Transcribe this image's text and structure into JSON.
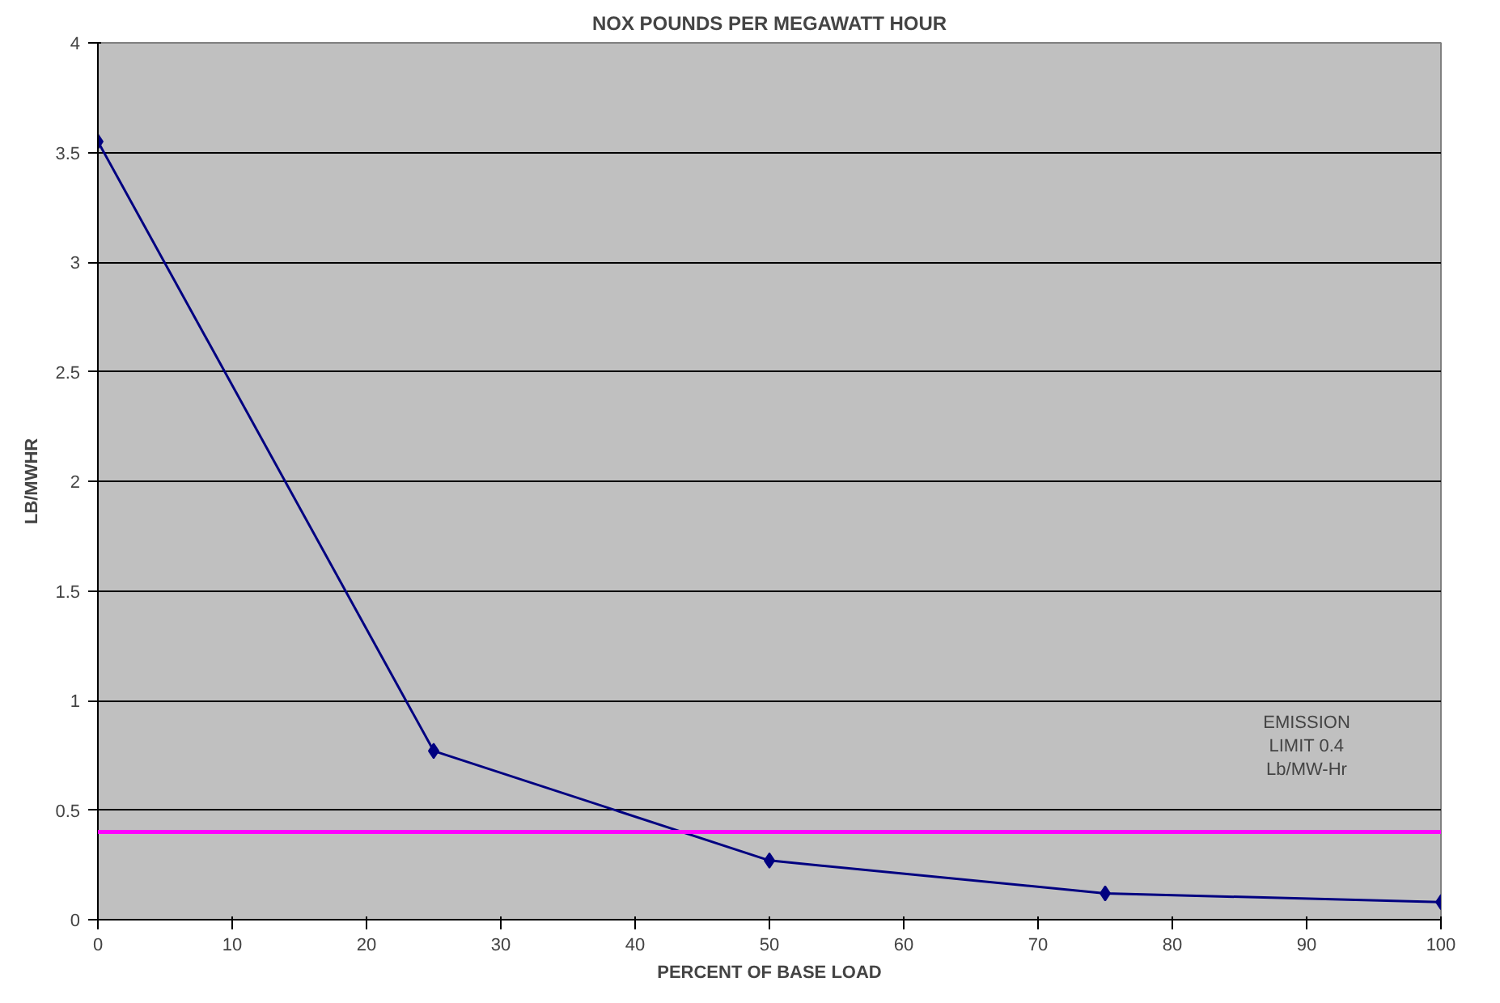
{
  "chart_data": {
    "type": "line",
    "title": "NOX POUNDS PER MEGAWATT HOUR",
    "xlabel": "PERCENT OF BASE LOAD",
    "ylabel": "LB/MWHR",
    "x": [
      0,
      25,
      50,
      75,
      100
    ],
    "series": [
      {
        "color": "#000080",
        "values": [
          3.55,
          0.77,
          0.27,
          0.12,
          0.08
        ]
      }
    ],
    "xlim": [
      0,
      100
    ],
    "xticks": [
      0,
      10,
      20,
      30,
      40,
      50,
      60,
      70,
      80,
      90,
      100
    ],
    "ylim": [
      0,
      4
    ],
    "yticks": [
      0,
      0.5,
      1,
      1.5,
      2,
      2.5,
      3,
      3.5,
      4
    ],
    "ref_lines": [
      {
        "axis": "y",
        "value": 0.4,
        "label": "EMISSION\nLIMIT 0.4\nLb/MW-Hr",
        "color": "#ff00ff"
      }
    ],
    "grid": "y",
    "marker": "diamond",
    "line_style": "solid"
  }
}
